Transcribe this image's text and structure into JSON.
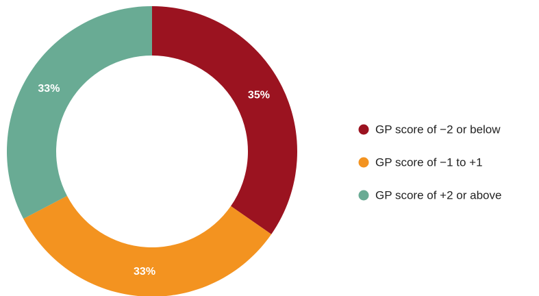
{
  "chart_data": {
    "type": "donut",
    "categories": [
      "GP score of −2 or below",
      "GP score of −1 to +1",
      "GP score of +2 or above"
    ],
    "values": [
      35,
      33,
      33
    ],
    "value_labels": [
      "35%",
      "33%",
      "33%"
    ],
    "colors": [
      "#9b1320",
      "#f39320",
      "#69ab94"
    ],
    "legend": "right"
  }
}
